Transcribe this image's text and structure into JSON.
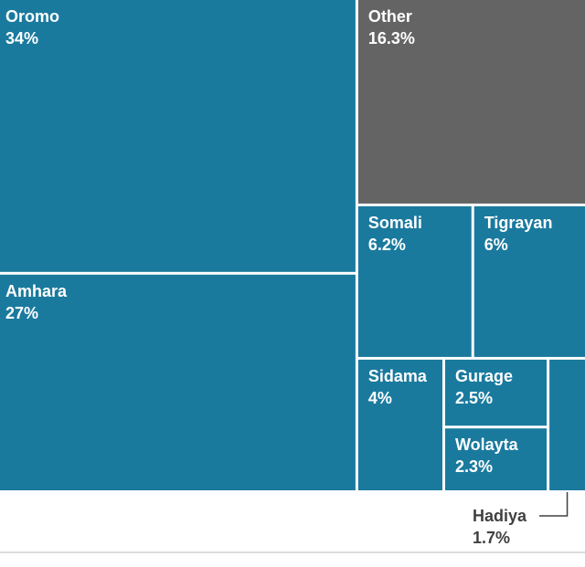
{
  "chart_data": {
    "type": "treemap",
    "colors": {
      "group": "#1a7a9e",
      "other": "#646464",
      "leader": "#404040",
      "baseline": "#bbbbbb"
    },
    "items": [
      {
        "label": "Oromo",
        "value": 34,
        "display": "34%"
      },
      {
        "label": "Amhara",
        "value": 27,
        "display": "27%"
      },
      {
        "label": "Other",
        "value": 16.3,
        "display": "16.3%"
      },
      {
        "label": "Somali",
        "value": 6.2,
        "display": "6.2%"
      },
      {
        "label": "Tigrayan",
        "value": 6,
        "display": "6%"
      },
      {
        "label": "Sidama",
        "value": 4,
        "display": "4%"
      },
      {
        "label": "Gurage",
        "value": 2.5,
        "display": "2.5%"
      },
      {
        "label": "Wolayta",
        "value": 2.3,
        "display": "2.3%"
      },
      {
        "label": "Hadiya",
        "value": 1.7,
        "display": "1.7%"
      }
    ]
  }
}
